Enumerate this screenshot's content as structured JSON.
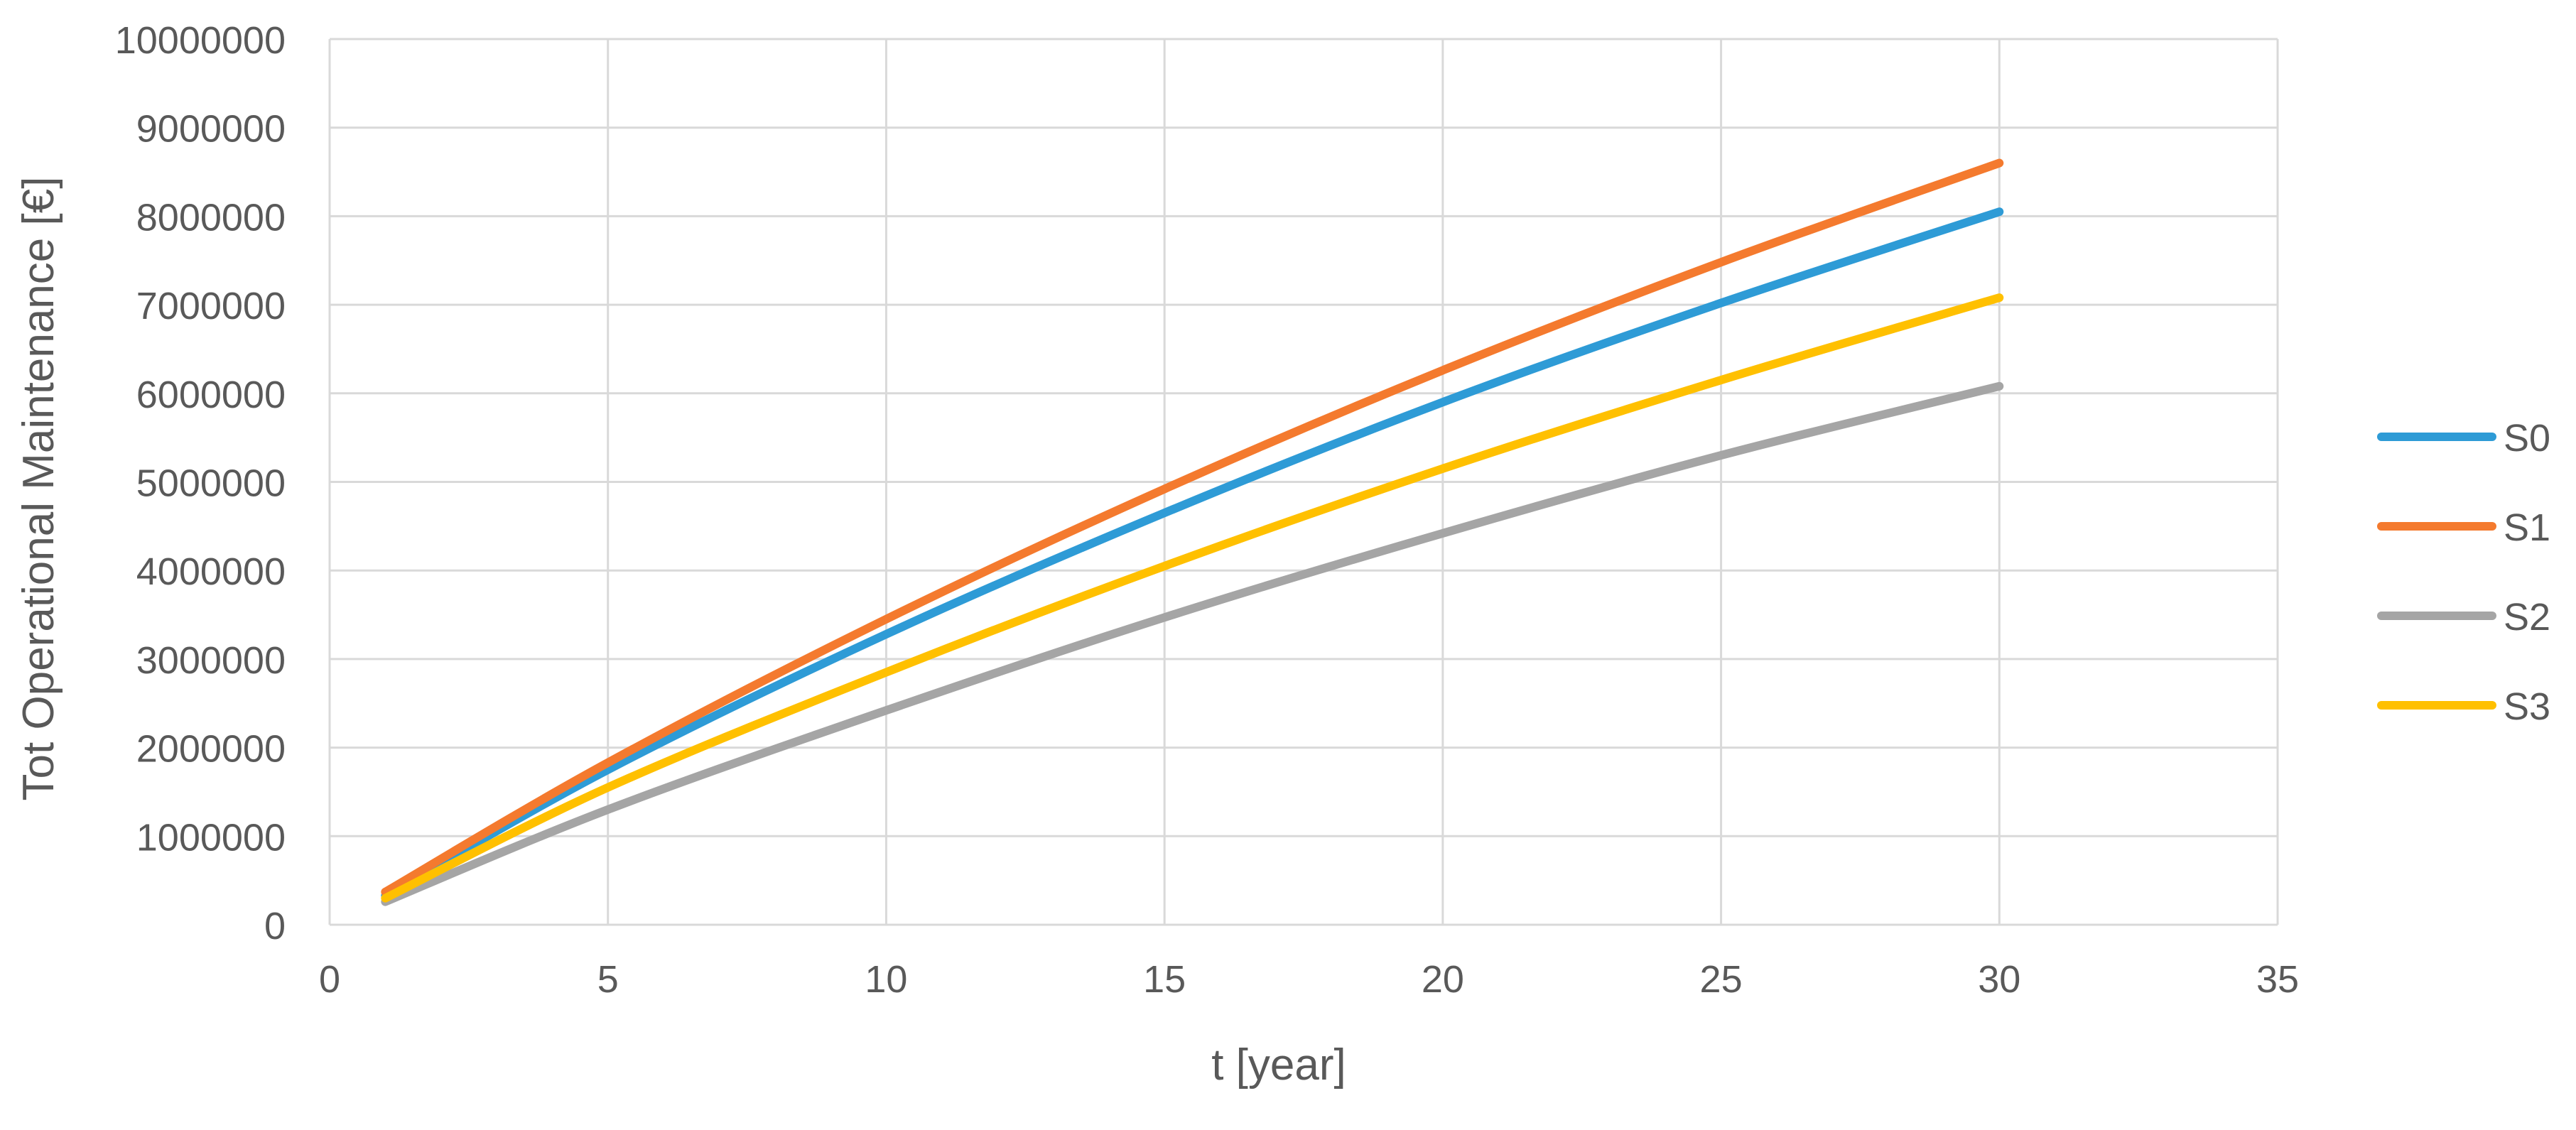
{
  "chart_data": {
    "type": "line",
    "title": "",
    "xlabel": "t [year]",
    "ylabel": "Tot Operational Maintenance [€]",
    "xlim": [
      0,
      35
    ],
    "ylim": [
      0,
      10000000
    ],
    "xticks": [
      0,
      5,
      10,
      15,
      20,
      25,
      30,
      35
    ],
    "yticks": [
      0,
      1000000,
      2000000,
      3000000,
      4000000,
      5000000,
      6000000,
      7000000,
      8000000,
      9000000,
      10000000
    ],
    "grid": true,
    "legend_position": "right",
    "x": [
      1,
      5,
      10,
      15,
      20,
      25,
      30
    ],
    "series": [
      {
        "name": "S0",
        "color": "#2E9BD6",
        "values": [
          330000,
          1750000,
          3280000,
          4650000,
          5900000,
          7020000,
          8050000
        ]
      },
      {
        "name": "S1",
        "color": "#F47A2E",
        "values": [
          370000,
          1830000,
          3450000,
          4920000,
          6260000,
          7480000,
          8600000
        ]
      },
      {
        "name": "S2",
        "color": "#A5A5A5",
        "values": [
          260000,
          1300000,
          2420000,
          3470000,
          4420000,
          5300000,
          6080000
        ]
      },
      {
        "name": "S3",
        "color": "#FFC000",
        "values": [
          300000,
          1550000,
          2850000,
          4050000,
          5150000,
          6150000,
          7080000
        ]
      }
    ]
  }
}
